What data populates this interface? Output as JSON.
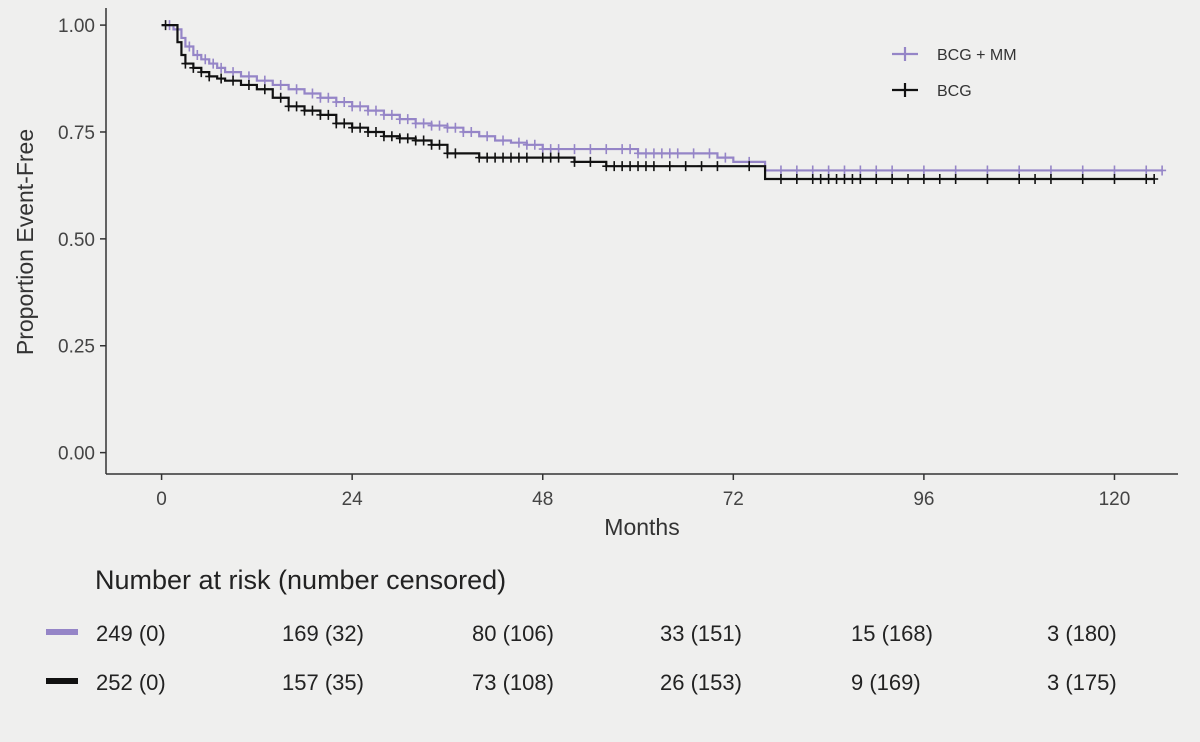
{
  "colors": {
    "bcg_mm": "#9585c7",
    "bcg": "#111111",
    "axis": "#333333",
    "background": "#efefee"
  },
  "chart_data": {
    "type": "line",
    "subtype": "kaplan-meier",
    "title": "",
    "xlabel": "Months",
    "ylabel": "Proportion Event-Free",
    "xlim": [
      -7,
      128
    ],
    "ylim": [
      -0.05,
      1.04
    ],
    "x_ticks": [
      0,
      24,
      48,
      72,
      96,
      120
    ],
    "x_tick_labels": [
      "0",
      "24",
      "48",
      "72",
      "96",
      "120"
    ],
    "y_ticks": [
      0,
      0.25,
      0.5,
      0.75,
      1
    ],
    "y_tick_labels": [
      "0.00",
      "0.25",
      "0.50",
      "0.75",
      "1.00"
    ],
    "grid": false,
    "legend_position": "top-right",
    "series": [
      {
        "name": "BCG + MM",
        "color": "#9585c7",
        "x": [
          0,
          1.5,
          2.5,
          3,
          4,
          5,
          6,
          7,
          8,
          10,
          12,
          14,
          16,
          18,
          20,
          22,
          24,
          26,
          28,
          30,
          32,
          34,
          36,
          38,
          40,
          42,
          44,
          46,
          48,
          54,
          58,
          60,
          66,
          70,
          72,
          75,
          76,
          126
        ],
        "y": [
          1,
          0.99,
          0.97,
          0.95,
          0.93,
          0.92,
          0.91,
          0.9,
          0.89,
          0.88,
          0.87,
          0.86,
          0.85,
          0.84,
          0.83,
          0.82,
          0.81,
          0.8,
          0.79,
          0.78,
          0.77,
          0.765,
          0.76,
          0.75,
          0.74,
          0.73,
          0.725,
          0.72,
          0.71,
          0.71,
          0.71,
          0.7,
          0.7,
          0.69,
          0.68,
          0.68,
          0.66,
          0.66
        ],
        "censor_x": [
          1,
          2,
          3.5,
          4.5,
          5.5,
          6.5,
          7.5,
          9,
          11,
          13,
          15,
          17,
          19,
          20,
          21,
          22,
          23,
          24,
          25,
          26,
          27,
          28,
          29,
          30,
          31,
          32,
          33,
          34,
          35,
          36,
          37,
          38,
          39,
          41,
          43,
          45,
          46,
          47,
          48,
          49,
          50,
          52,
          54,
          56,
          58,
          59,
          60,
          61,
          62,
          63,
          64,
          65,
          67,
          69,
          71,
          74,
          78,
          80,
          82,
          84,
          86,
          88,
          90,
          92,
          96,
          100,
          104,
          108,
          112,
          116,
          120,
          124,
          126
        ]
      },
      {
        "name": "BCG",
        "color": "#111111",
        "x": [
          0,
          2,
          2.5,
          3,
          4,
          5,
          6,
          7,
          8,
          10,
          12,
          14,
          16,
          18,
          20,
          22,
          24,
          26,
          28,
          30,
          32,
          34,
          36,
          38,
          40,
          42,
          44,
          46,
          52,
          56,
          60,
          66,
          70,
          72,
          75,
          76,
          125
        ],
        "y": [
          1,
          0.96,
          0.93,
          0.91,
          0.9,
          0.89,
          0.88,
          0.875,
          0.87,
          0.86,
          0.85,
          0.83,
          0.81,
          0.8,
          0.79,
          0.77,
          0.76,
          0.75,
          0.74,
          0.735,
          0.73,
          0.72,
          0.7,
          0.7,
          0.69,
          0.69,
          0.69,
          0.69,
          0.68,
          0.67,
          0.67,
          0.67,
          0.67,
          0.67,
          0.67,
          0.64,
          0.64
        ],
        "censor_x": [
          0.5,
          3,
          4,
          5,
          6,
          7.5,
          9,
          11,
          13,
          15,
          16,
          17,
          18,
          19,
          20,
          21,
          22,
          23,
          24,
          25,
          26,
          27,
          28,
          29,
          30,
          31,
          32,
          33,
          34,
          35,
          36,
          37,
          40,
          41,
          42,
          43,
          44,
          45,
          46,
          48,
          49,
          50,
          52,
          54,
          56,
          57,
          58,
          59,
          60,
          61,
          62,
          64,
          66,
          68,
          70,
          74,
          78,
          80,
          82,
          83,
          84,
          85,
          86,
          87,
          88,
          90,
          92,
          94,
          96,
          98,
          100,
          104,
          108,
          110,
          112,
          116,
          120,
          124,
          125
        ]
      }
    ],
    "risk_table": {
      "title": "Number at risk (number censored)",
      "time_points": [
        0,
        24,
        48,
        72,
        96,
        120
      ],
      "rows": [
        {
          "series": "BCG + MM",
          "color": "#9585c7",
          "cells": [
            "249 (0)",
            "169 (32)",
            "80 (106)",
            "33 (151)",
            "15 (168)",
            "3 (180)"
          ]
        },
        {
          "series": "BCG",
          "color": "#111111",
          "cells": [
            "252 (0)",
            "157 (35)",
            "73 (108)",
            "26 (153)",
            "9 (169)",
            "3 (175)"
          ]
        }
      ]
    }
  }
}
